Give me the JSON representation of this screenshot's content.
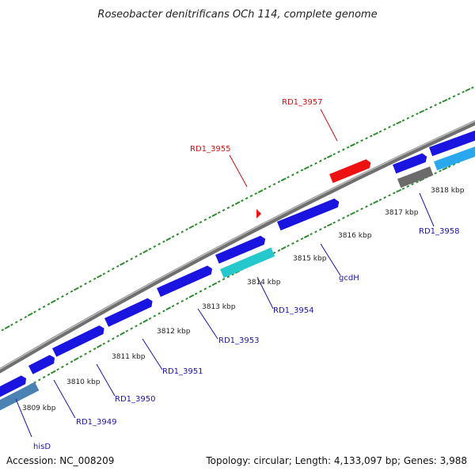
{
  "title": "Roseobacter denitrificans OCh 114, complete genome",
  "footer": {
    "accession": "Accession: NC_008209",
    "summary": "Topology: circular; Length: 4,133,097 bp; Genes: 3,988"
  },
  "colors": {
    "backbone": "#8a8a8a",
    "tick": "#2e8b2e",
    "gene_forward": "#1a14e0",
    "gene_teal": "#25c8cc",
    "gene_cyan": "#2aa8ee",
    "gene_gray": "#6b6b6b",
    "gene_steel": "#4a82b4",
    "gene_red": "#ee1111",
    "label_blue": "#1a14a8",
    "label_red": "#cc1111"
  },
  "kbp_labels": [
    "3809 kbp",
    "3810 kbp",
    "3811 kbp",
    "3812 kbp",
    "3813 kbp",
    "3814 kbp",
    "3815 kbp",
    "3816 kbp",
    "3817 kbp",
    "3818 kbp"
  ],
  "gene_labels": [
    {
      "text": "hisD",
      "color": "blue"
    },
    {
      "text": "RD1_3949",
      "color": "blue"
    },
    {
      "text": "RD1_3950",
      "color": "blue"
    },
    {
      "text": "RD1_3951",
      "color": "blue"
    },
    {
      "text": "RD1_3953",
      "color": "blue"
    },
    {
      "text": "RD1_3954",
      "color": "blue"
    },
    {
      "text": "gcdH",
      "color": "blue"
    },
    {
      "text": "RD1_3958",
      "color": "blue"
    },
    {
      "text": "RD1_3955",
      "color": "red"
    },
    {
      "text": "RD1_3957",
      "color": "red"
    }
  ]
}
